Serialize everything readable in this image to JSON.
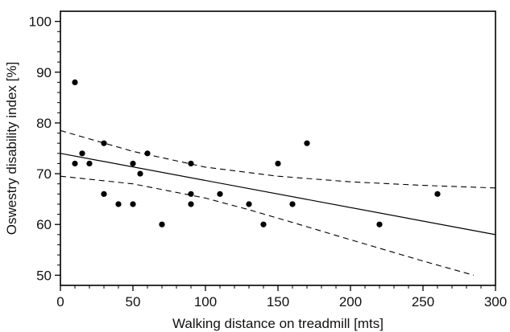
{
  "chart_data": {
    "type": "scatter",
    "title": "",
    "xlabel": "Walking distance on treadmill [mts]",
    "ylabel": "Oswestry disability index [%]",
    "xlim": [
      0,
      300
    ],
    "ylim": [
      48,
      102
    ],
    "xticks": [
      0,
      50,
      100,
      150,
      200,
      250,
      300
    ],
    "yticks": [
      50,
      60,
      70,
      80,
      90,
      100
    ],
    "grid": false,
    "legend": "none",
    "points": [
      {
        "x": 10,
        "y": 88
      },
      {
        "x": 10,
        "y": 72
      },
      {
        "x": 15,
        "y": 74
      },
      {
        "x": 20,
        "y": 72
      },
      {
        "x": 30,
        "y": 76
      },
      {
        "x": 30,
        "y": 66
      },
      {
        "x": 40,
        "y": 64
      },
      {
        "x": 50,
        "y": 72
      },
      {
        "x": 50,
        "y": 64
      },
      {
        "x": 55,
        "y": 70
      },
      {
        "x": 60,
        "y": 74
      },
      {
        "x": 70,
        "y": 60
      },
      {
        "x": 90,
        "y": 72
      },
      {
        "x": 90,
        "y": 66
      },
      {
        "x": 90,
        "y": 64
      },
      {
        "x": 110,
        "y": 66
      },
      {
        "x": 130,
        "y": 64
      },
      {
        "x": 140,
        "y": 60
      },
      {
        "x": 150,
        "y": 72
      },
      {
        "x": 160,
        "y": 64
      },
      {
        "x": 170,
        "y": 76
      },
      {
        "x": 220,
        "y": 60
      },
      {
        "x": 260,
        "y": 66
      }
    ],
    "regression_line": {
      "style": "solid",
      "x": [
        0,
        300
      ],
      "y": [
        74,
        58
      ]
    },
    "confidence_band": [
      {
        "name": "upper",
        "style": "dashed",
        "x": [
          0,
          50,
          100,
          150,
          200,
          250,
          300
        ],
        "y": [
          78.5,
          74.4,
          71.3,
          69.5,
          68.4,
          67.7,
          67.2
        ]
      },
      {
        "name": "lower",
        "style": "dashed",
        "x": [
          0,
          50,
          100,
          130,
          160,
          200,
          250,
          285
        ],
        "y": [
          69.5,
          68.0,
          65.2,
          62.9,
          60.4,
          57.0,
          52.8,
          50.0
        ]
      }
    ],
    "colors": {
      "points": "#000000",
      "lines": "#000000",
      "axes": "#000000"
    }
  }
}
